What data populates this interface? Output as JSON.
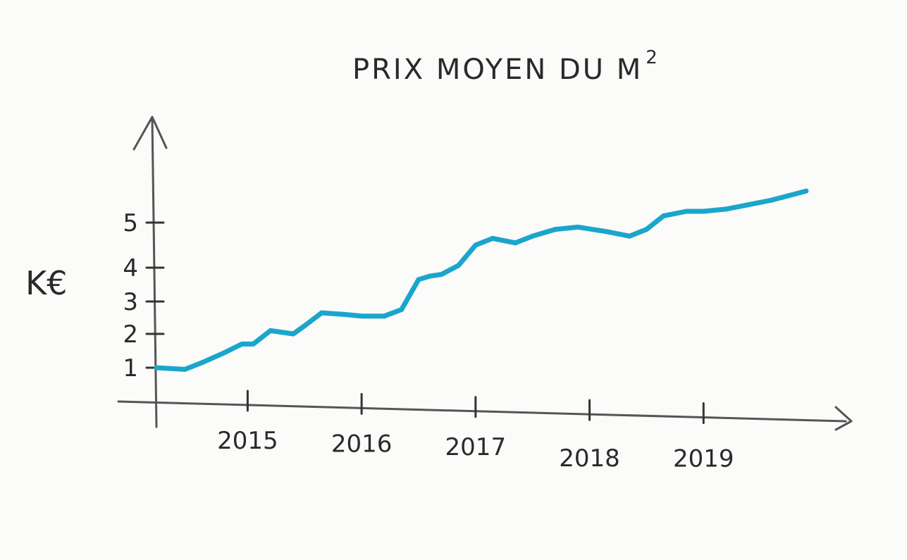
{
  "chart_data": {
    "type": "line",
    "title": "PRIX MOYEN DU M",
    "title_superscript": "2",
    "ylabel": "K€",
    "xlabel": "",
    "x_ticks": [
      "2015",
      "2016",
      "2017",
      "2018",
      "2019"
    ],
    "y_ticks": [
      "1",
      "2",
      "3",
      "4",
      "5"
    ],
    "ylim": [
      0,
      6
    ],
    "xlim": [
      2014.2,
      2020.0
    ],
    "grid": false,
    "series": [
      {
        "color": "#1aa6cc",
        "x": [
          2014.2,
          2014.45,
          2014.6,
          2014.8,
          2014.95,
          2015.05,
          2015.2,
          2015.4,
          2015.5,
          2015.65,
          2015.85,
          2016.0,
          2016.2,
          2016.35,
          2016.5,
          2016.6,
          2016.7,
          2016.85,
          2017.0,
          2017.15,
          2017.35,
          2017.5,
          2017.7,
          2017.9,
          2018.15,
          2018.35,
          2018.5,
          2018.65,
          2018.85,
          2019.0,
          2019.2,
          2019.4,
          2019.6,
          2019.75,
          2019.9
        ],
        "y": [
          1.0,
          0.95,
          1.15,
          1.45,
          1.7,
          1.7,
          2.1,
          2.0,
          2.25,
          2.65,
          2.6,
          2.55,
          2.55,
          2.75,
          3.65,
          3.75,
          3.8,
          4.05,
          4.5,
          4.65,
          4.55,
          4.7,
          4.85,
          4.9,
          4.8,
          4.7,
          4.85,
          5.15,
          5.25,
          5.25,
          5.3,
          5.4,
          5.5,
          5.6,
          5.7
        ]
      }
    ]
  }
}
